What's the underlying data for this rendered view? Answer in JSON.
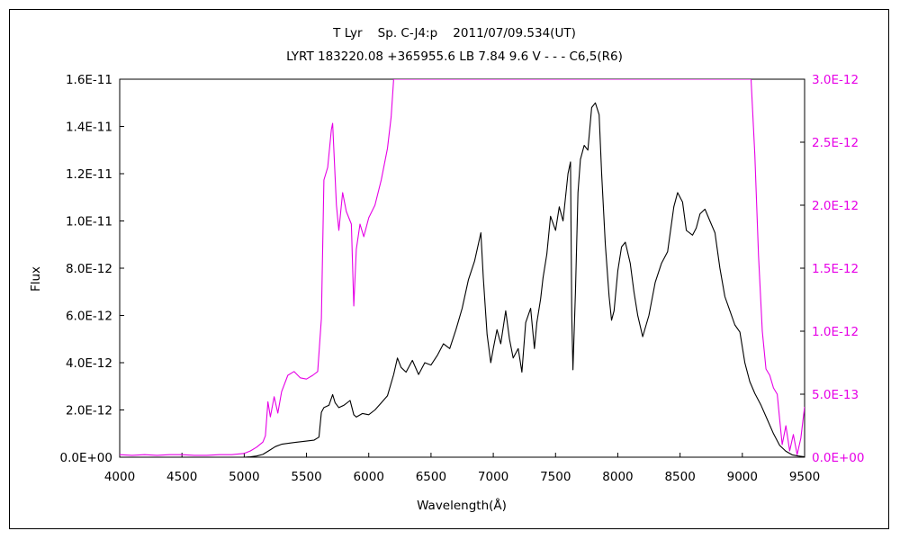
{
  "chart_data": {
    "type": "line",
    "title": "T Lyr    Sp. C-J4:p    2011/07/09.534(UT)",
    "subtitle": "LYRT 183220.08 +365955.6 LB 7.84 9.6 V - - - C6,5(R6)",
    "xlabel": "Wavelength(Å)",
    "ylabel": "Flux",
    "xlim": [
      4000,
      9500
    ],
    "ylim": [
      0,
      1.6e-11
    ],
    "y2lim": [
      0,
      3e-12
    ],
    "grid": false,
    "x_ticks": [
      "4000",
      "4500",
      "5000",
      "5500",
      "6000",
      "6500",
      "7000",
      "7500",
      "8000",
      "8500",
      "9000",
      "9500"
    ],
    "y_ticks_left": [
      "0.0E+00",
      "2.0E-12",
      "4.0E-12",
      "6.0E-12",
      "8.0E-12",
      "1.0E-11",
      "1.2E-11",
      "1.4E-11",
      "1.6E-11"
    ],
    "y_ticks_right": [
      "0.0E+00",
      "5.0E-13",
      "1.0E-12",
      "1.5E-12",
      "2.0E-12",
      "2.5E-12",
      "3.0E-12"
    ],
    "series": [
      {
        "axis": "left",
        "color": "#000000",
        "points": [
          [
            5000,
            0.0
          ],
          [
            5050,
            2e-14
          ],
          [
            5100,
            5e-14
          ],
          [
            5150,
            1.2e-13
          ],
          [
            5200,
            2.8e-13
          ],
          [
            5250,
            4.5e-13
          ],
          [
            5300,
            5.5e-13
          ],
          [
            5400,
            6.2e-13
          ],
          [
            5500,
            6.8e-13
          ],
          [
            5560,
            7.2e-13
          ],
          [
            5600,
            8.5e-13
          ],
          [
            5620,
            1.9e-12
          ],
          [
            5640,
            2.1e-12
          ],
          [
            5680,
            2.2e-12
          ],
          [
            5710,
            2.65e-12
          ],
          [
            5730,
            2.3e-12
          ],
          [
            5760,
            2.1e-12
          ],
          [
            5800,
            2.2e-12
          ],
          [
            5850,
            2.4e-12
          ],
          [
            5880,
            1.8e-12
          ],
          [
            5900,
            1.7e-12
          ],
          [
            5950,
            1.85e-12
          ],
          [
            6000,
            1.8e-12
          ],
          [
            6050,
            2e-12
          ],
          [
            6100,
            2.3e-12
          ],
          [
            6150,
            2.6e-12
          ],
          [
            6200,
            3.5e-12
          ],
          [
            6230,
            4.2e-12
          ],
          [
            6260,
            3.8e-12
          ],
          [
            6300,
            3.6e-12
          ],
          [
            6350,
            4.1e-12
          ],
          [
            6400,
            3.5e-12
          ],
          [
            6450,
            4e-12
          ],
          [
            6500,
            3.9e-12
          ],
          [
            6550,
            4.3e-12
          ],
          [
            6600,
            4.8e-12
          ],
          [
            6650,
            4.6e-12
          ],
          [
            6700,
            5.4e-12
          ],
          [
            6750,
            6.3e-12
          ],
          [
            6800,
            7.5e-12
          ],
          [
            6850,
            8.3e-12
          ],
          [
            6900,
            9.5e-12
          ],
          [
            6920,
            7.6e-12
          ],
          [
            6950,
            5.2e-12
          ],
          [
            6980,
            4e-12
          ],
          [
            7000,
            4.6e-12
          ],
          [
            7030,
            5.4e-12
          ],
          [
            7060,
            4.8e-12
          ],
          [
            7100,
            6.2e-12
          ],
          [
            7130,
            5e-12
          ],
          [
            7160,
            4.2e-12
          ],
          [
            7200,
            4.6e-12
          ],
          [
            7230,
            3.6e-12
          ],
          [
            7260,
            5.7e-12
          ],
          [
            7300,
            6.3e-12
          ],
          [
            7330,
            4.6e-12
          ],
          [
            7350,
            5.7e-12
          ],
          [
            7380,
            6.7e-12
          ],
          [
            7400,
            7.6e-12
          ],
          [
            7430,
            8.6e-12
          ],
          [
            7460,
            1.02e-11
          ],
          [
            7500,
            9.6e-12
          ],
          [
            7530,
            1.06e-11
          ],
          [
            7560,
            1e-11
          ],
          [
            7600,
            1.2e-11
          ],
          [
            7620,
            1.25e-11
          ],
          [
            7630,
            6e-12
          ],
          [
            7640,
            3.7e-12
          ],
          [
            7660,
            7e-12
          ],
          [
            7680,
            1.12e-11
          ],
          [
            7700,
            1.26e-11
          ],
          [
            7730,
            1.32e-11
          ],
          [
            7760,
            1.3e-11
          ],
          [
            7790,
            1.48e-11
          ],
          [
            7820,
            1.5e-11
          ],
          [
            7850,
            1.45e-11
          ],
          [
            7870,
            1.2e-11
          ],
          [
            7900,
            9e-12
          ],
          [
            7930,
            6.8e-12
          ],
          [
            7950,
            5.8e-12
          ],
          [
            7970,
            6.2e-12
          ],
          [
            8000,
            7.9e-12
          ],
          [
            8030,
            8.9e-12
          ],
          [
            8060,
            9.1e-12
          ],
          [
            8100,
            8.2e-12
          ],
          [
            8130,
            7e-12
          ],
          [
            8160,
            6e-12
          ],
          [
            8200,
            5.1e-12
          ],
          [
            8250,
            6e-12
          ],
          [
            8300,
            7.4e-12
          ],
          [
            8350,
            8.2e-12
          ],
          [
            8400,
            8.7e-12
          ],
          [
            8450,
            1.06e-11
          ],
          [
            8480,
            1.12e-11
          ],
          [
            8520,
            1.08e-11
          ],
          [
            8550,
            9.6e-12
          ],
          [
            8600,
            9.4e-12
          ],
          [
            8630,
            9.7e-12
          ],
          [
            8660,
            1.03e-11
          ],
          [
            8700,
            1.05e-11
          ],
          [
            8740,
            1e-11
          ],
          [
            8780,
            9.5e-12
          ],
          [
            8820,
            8e-12
          ],
          [
            8860,
            6.8e-12
          ],
          [
            8900,
            6.2e-12
          ],
          [
            8940,
            5.6e-12
          ],
          [
            8980,
            5.3e-12
          ],
          [
            9020,
            4e-12
          ],
          [
            9060,
            3.2e-12
          ],
          [
            9100,
            2.7e-12
          ],
          [
            9150,
            2.2e-12
          ],
          [
            9200,
            1.6e-12
          ],
          [
            9250,
            1e-12
          ],
          [
            9300,
            5e-13
          ],
          [
            9350,
            2.5e-13
          ],
          [
            9400,
            1e-13
          ],
          [
            9450,
            5e-14
          ],
          [
            9500,
            2e-14
          ]
        ]
      },
      {
        "axis": "right",
        "color": "#e600e6",
        "points": [
          [
            4000,
            2e-14
          ],
          [
            4100,
            1.5e-14
          ],
          [
            4200,
            2e-14
          ],
          [
            4300,
            1.5e-14
          ],
          [
            4400,
            2e-14
          ],
          [
            4500,
            2e-14
          ],
          [
            4600,
            1.5e-14
          ],
          [
            4700,
            1.5e-14
          ],
          [
            4800,
            2e-14
          ],
          [
            4900,
            2e-14
          ],
          [
            5000,
            3e-14
          ],
          [
            5050,
            5e-14
          ],
          [
            5100,
            8e-14
          ],
          [
            5150,
            1.2e-13
          ],
          [
            5170,
            1.7e-13
          ],
          [
            5190,
            4.4e-13
          ],
          [
            5210,
            3.2e-13
          ],
          [
            5240,
            4.8e-13
          ],
          [
            5270,
            3.5e-13
          ],
          [
            5300,
            5.2e-13
          ],
          [
            5350,
            6.5e-13
          ],
          [
            5400,
            6.8e-13
          ],
          [
            5450,
            6.3e-13
          ],
          [
            5500,
            6.2e-13
          ],
          [
            5550,
            6.5e-13
          ],
          [
            5590,
            6.8e-13
          ],
          [
            5620,
            1.1e-12
          ],
          [
            5640,
            2.2e-12
          ],
          [
            5670,
            2.3e-12
          ],
          [
            5700,
            2.6e-12
          ],
          [
            5710,
            2.65e-12
          ],
          [
            5740,
            2e-12
          ],
          [
            5760,
            1.8e-12
          ],
          [
            5790,
            2.1e-12
          ],
          [
            5820,
            1.95e-12
          ],
          [
            5860,
            1.85e-12
          ],
          [
            5880,
            1.2e-12
          ],
          [
            5900,
            1.65e-12
          ],
          [
            5930,
            1.85e-12
          ],
          [
            5960,
            1.75e-12
          ],
          [
            6000,
            1.9e-12
          ],
          [
            6050,
            2e-12
          ],
          [
            6100,
            2.2e-12
          ],
          [
            6150,
            2.45e-12
          ],
          [
            6180,
            2.7e-12
          ],
          [
            6200,
            3e-12
          ],
          [
            6450,
            3e-12
          ],
          [
            9070,
            3e-12
          ],
          [
            9100,
            2.4e-12
          ],
          [
            9130,
            1.6e-12
          ],
          [
            9160,
            1e-12
          ],
          [
            9190,
            7e-13
          ],
          [
            9220,
            6.5e-13
          ],
          [
            9250,
            5.5e-13
          ],
          [
            9280,
            5e-13
          ],
          [
            9300,
            3e-13
          ],
          [
            9320,
            1e-13
          ],
          [
            9350,
            2.5e-13
          ],
          [
            9380,
            5e-14
          ],
          [
            9410,
            1.8e-13
          ],
          [
            9440,
            2e-14
          ],
          [
            9470,
            1.5e-13
          ],
          [
            9500,
            4e-13
          ]
        ]
      }
    ]
  }
}
